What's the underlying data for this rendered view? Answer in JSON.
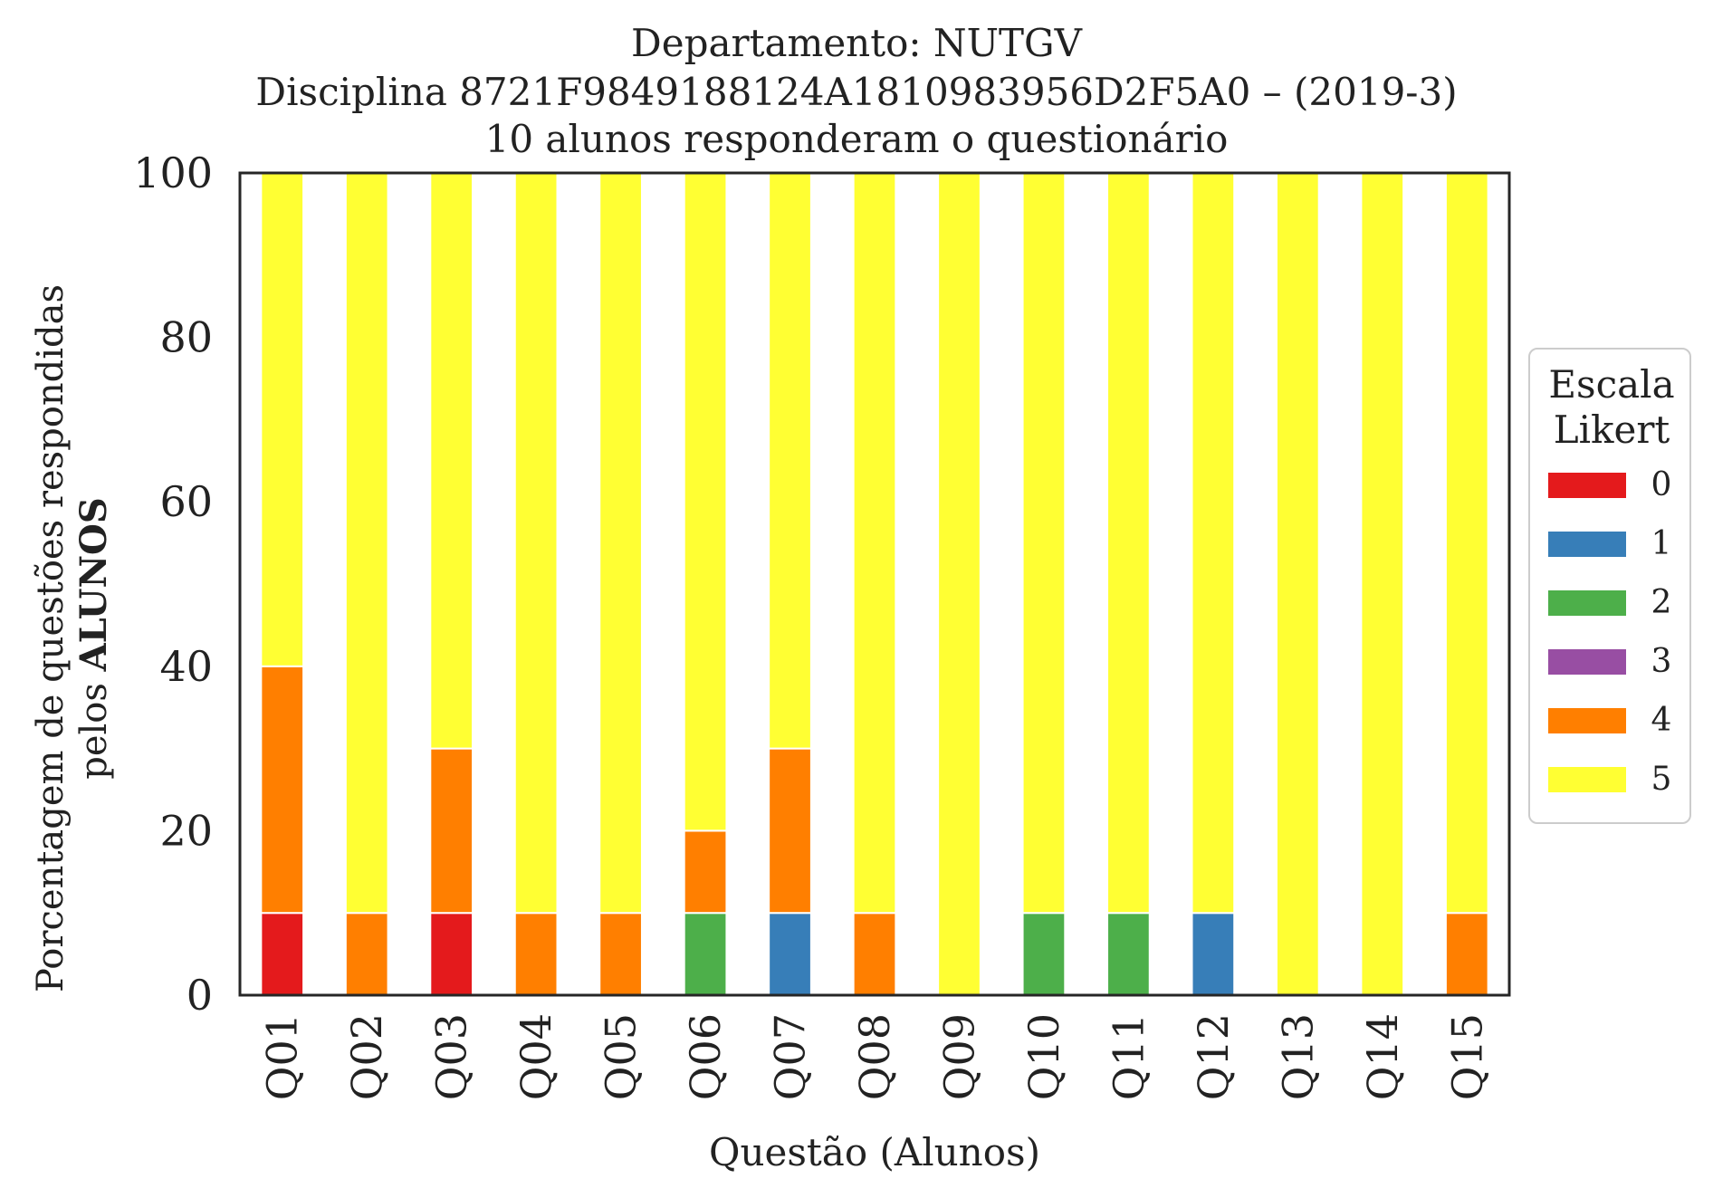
{
  "chart_data": {
    "type": "bar",
    "stacked": true,
    "title_lines": [
      "Departamento: NUTGV",
      "Disciplina 8721F9849188124A1810983956D2F5A0 – (2019-3)",
      "10 alunos responderam o questionário"
    ],
    "xlabel": "Questão (Alunos)",
    "ylabel_line1": "Porcentagem de questões respondidas",
    "ylabel_line2_prefix": "pelos ",
    "ylabel_line2_bold": "ALUNOS",
    "ylim": [
      0,
      100
    ],
    "yticks": [
      "0",
      "20",
      "40",
      "60",
      "80",
      "100"
    ],
    "grid": false,
    "legend_position": "right",
    "legend_title_line1": "Escala",
    "legend_title_line2": "Likert",
    "categories": [
      "Q01",
      "Q02",
      "Q03",
      "Q04",
      "Q05",
      "Q06",
      "Q07",
      "Q08",
      "Q09",
      "Q10",
      "Q11",
      "Q12",
      "Q13",
      "Q14",
      "Q15"
    ],
    "series": [
      {
        "name": "0",
        "color": "#e41a1c",
        "values": [
          10,
          0,
          10,
          0,
          0,
          0,
          0,
          0,
          0,
          0,
          0,
          0,
          0,
          0,
          0
        ]
      },
      {
        "name": "1",
        "color": "#377eb8",
        "values": [
          0,
          0,
          0,
          0,
          0,
          0,
          10,
          0,
          0,
          0,
          0,
          10,
          0,
          0,
          0
        ]
      },
      {
        "name": "2",
        "color": "#4daf4a",
        "values": [
          0,
          0,
          0,
          0,
          0,
          10,
          0,
          0,
          0,
          10,
          10,
          0,
          0,
          0,
          0
        ]
      },
      {
        "name": "3",
        "color": "#984ea3",
        "values": [
          0,
          0,
          0,
          0,
          0,
          0,
          0,
          0,
          0,
          0,
          0,
          0,
          0,
          0,
          0
        ]
      },
      {
        "name": "4",
        "color": "#ff7f00",
        "values": [
          30,
          10,
          20,
          10,
          10,
          10,
          20,
          10,
          0,
          0,
          0,
          0,
          0,
          0,
          10
        ]
      },
      {
        "name": "5",
        "color": "#ffff33",
        "values": [
          60,
          90,
          70,
          90,
          90,
          80,
          70,
          90,
          100,
          90,
          90,
          90,
          100,
          100,
          90
        ]
      }
    ]
  }
}
